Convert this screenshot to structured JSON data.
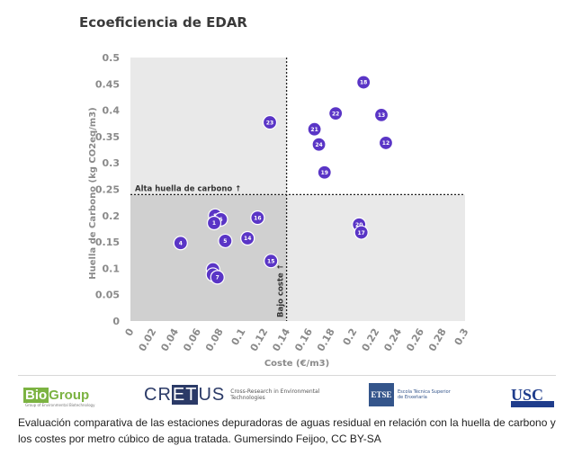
{
  "chart_data": {
    "type": "scatter",
    "title": "Ecoeficiencia de EDAR",
    "xlabel": "Coste (€/m3)",
    "ylabel": "Huella de Carbono (kg CO2eq/m3)",
    "xlim": [
      0,
      0.3
    ],
    "ylim": [
      0,
      0.5
    ],
    "xticks": [
      "0",
      "0.02",
      "0.04",
      "0.06",
      "0.08",
      "0.1",
      "0.12",
      "0.14",
      "0.16",
      "0.18",
      "0.2",
      "0.22",
      "0.24",
      "0.26",
      "0.28",
      "0.3"
    ],
    "yticks": [
      "0",
      "0.05",
      "0.1",
      "0.15",
      "0.2",
      "0.25",
      "0.3",
      "0.35",
      "0.4",
      "0.45",
      "0.5"
    ],
    "threshold_x": 0.14,
    "threshold_y": 0.24,
    "annotation_y": "Alta huella de carbono ↑",
    "annotation_x": "Bajo coste ↑",
    "grid": false,
    "color": "#5a35c6",
    "shade_color": "#d0d0d0",
    "points": [
      {
        "label": "4",
        "x": 0.045,
        "y": 0.148
      },
      {
        "label": "9",
        "x": 0.074,
        "y": 0.098
      },
      {
        "label": "3",
        "x": 0.074,
        "y": 0.088
      },
      {
        "label": "7",
        "x": 0.078,
        "y": 0.083
      },
      {
        "label": "8",
        "x": 0.076,
        "y": 0.2
      },
      {
        "label": "6",
        "x": 0.081,
        "y": 0.193
      },
      {
        "label": "1",
        "x": 0.075,
        "y": 0.186
      },
      {
        "label": "5",
        "x": 0.085,
        "y": 0.152
      },
      {
        "label": "14",
        "x": 0.105,
        "y": 0.157
      },
      {
        "label": "16",
        "x": 0.114,
        "y": 0.196
      },
      {
        "label": "23",
        "x": 0.125,
        "y": 0.377
      },
      {
        "label": "15",
        "x": 0.126,
        "y": 0.114
      },
      {
        "label": "21",
        "x": 0.165,
        "y": 0.364
      },
      {
        "label": "24",
        "x": 0.169,
        "y": 0.335
      },
      {
        "label": "19",
        "x": 0.174,
        "y": 0.282
      },
      {
        "label": "22",
        "x": 0.184,
        "y": 0.394
      },
      {
        "label": "20",
        "x": 0.205,
        "y": 0.183
      },
      {
        "label": "17",
        "x": 0.207,
        "y": 0.168
      },
      {
        "label": "18",
        "x": 0.209,
        "y": 0.453
      },
      {
        "label": "13",
        "x": 0.225,
        "y": 0.391
      },
      {
        "label": "12",
        "x": 0.229,
        "y": 0.338
      }
    ]
  },
  "logos": {
    "biogroup": {
      "part1": "Bio",
      "part2": "Group",
      "subtitle": "Group of Environmental Biotechnology"
    },
    "cretus": {
      "pre": "CR",
      "boxed": "ET",
      "post": "US",
      "desc": "Cross-Research in Environmental Technologies"
    },
    "etse": {
      "mark": "ETSE",
      "desc": "Escola Técnica Superior de Enxeñaría"
    },
    "usc": {
      "mark": "USC"
    }
  },
  "caption": "Evaluación comparativa de las estaciones depuradoras de aguas residual en relación con la huella de carbono y los costes por metro cúbico de agua tratada. Gumersindo Feijoo, CC BY-SA"
}
